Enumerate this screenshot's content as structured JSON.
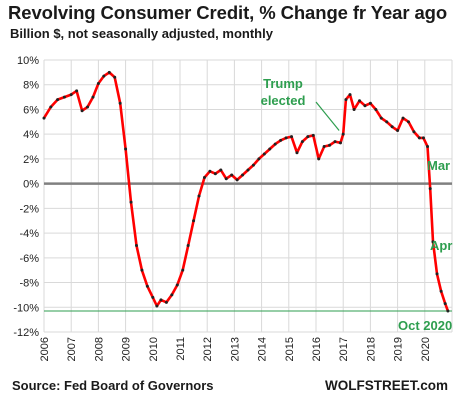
{
  "header": {
    "title": "Revolving Consumer Credit, % Change fr Year ago",
    "subtitle": "Billion $, not seasonally adjusted, monthly"
  },
  "footer": {
    "source": "Source: Fed Board of Governors",
    "brand": "WOLFSTREET.com"
  },
  "colors": {
    "line": "#ff0000",
    "marker": "#222222",
    "annotation": "#2e9e4f",
    "zero_line": "#808080",
    "grid": "#d9d9d9"
  },
  "chart_data": {
    "type": "line",
    "title": "Revolving Consumer Credit, % Change fr Year ago",
    "subtitle": "Billion $, not seasonally adjusted, monthly",
    "ylim": [
      -12,
      10
    ],
    "xlim": [
      2006,
      2021
    ],
    "grid": true,
    "y_ticks": [
      "10%",
      "8%",
      "6%",
      "4%",
      "2%",
      "0%",
      "-2%",
      "-4%",
      "-6%",
      "-8%",
      "-10%",
      "-12%"
    ],
    "x_ticks": [
      "2006",
      "2007",
      "2008",
      "2009",
      "2010",
      "2011",
      "2012",
      "2013",
      "2014",
      "2015",
      "2016",
      "2017",
      "2018",
      "2019",
      "2020"
    ],
    "series": [
      {
        "points": [
          [
            2006.0,
            5.3
          ],
          [
            2006.25,
            6.2
          ],
          [
            2006.5,
            6.8
          ],
          [
            2006.75,
            7.0
          ],
          [
            2007.0,
            7.2
          ],
          [
            2007.2,
            7.5
          ],
          [
            2007.4,
            5.9
          ],
          [
            2007.6,
            6.2
          ],
          [
            2007.8,
            7.0
          ],
          [
            2008.0,
            8.1
          ],
          [
            2008.2,
            8.7
          ],
          [
            2008.4,
            9.0
          ],
          [
            2008.6,
            8.6
          ],
          [
            2008.8,
            6.5
          ],
          [
            2009.0,
            2.8
          ],
          [
            2009.2,
            -1.5
          ],
          [
            2009.4,
            -5.0
          ],
          [
            2009.6,
            -7.0
          ],
          [
            2009.8,
            -8.3
          ],
          [
            2010.0,
            -9.2
          ],
          [
            2010.15,
            -9.9
          ],
          [
            2010.3,
            -9.4
          ],
          [
            2010.5,
            -9.6
          ],
          [
            2010.7,
            -9.0
          ],
          [
            2010.9,
            -8.2
          ],
          [
            2011.1,
            -7.0
          ],
          [
            2011.3,
            -5.0
          ],
          [
            2011.5,
            -3.0
          ],
          [
            2011.7,
            -1.0
          ],
          [
            2011.9,
            0.5
          ],
          [
            2012.1,
            1.0
          ],
          [
            2012.3,
            0.8
          ],
          [
            2012.5,
            1.1
          ],
          [
            2012.7,
            0.4
          ],
          [
            2012.9,
            0.7
          ],
          [
            2013.1,
            0.3
          ],
          [
            2013.3,
            0.7
          ],
          [
            2013.5,
            1.1
          ],
          [
            2013.7,
            1.5
          ],
          [
            2013.9,
            2.0
          ],
          [
            2014.1,
            2.4
          ],
          [
            2014.3,
            2.8
          ],
          [
            2014.5,
            3.2
          ],
          [
            2014.7,
            3.5
          ],
          [
            2014.9,
            3.7
          ],
          [
            2015.1,
            3.8
          ],
          [
            2015.3,
            2.5
          ],
          [
            2015.5,
            3.4
          ],
          [
            2015.7,
            3.8
          ],
          [
            2015.9,
            3.9
          ],
          [
            2016.1,
            2.0
          ],
          [
            2016.3,
            3.0
          ],
          [
            2016.5,
            3.1
          ],
          [
            2016.7,
            3.4
          ],
          [
            2016.9,
            3.3
          ],
          [
            2017.0,
            4.0
          ],
          [
            2017.1,
            6.8
          ],
          [
            2017.25,
            7.2
          ],
          [
            2017.4,
            6.0
          ],
          [
            2017.6,
            6.7
          ],
          [
            2017.8,
            6.3
          ],
          [
            2018.0,
            6.5
          ],
          [
            2018.2,
            6.0
          ],
          [
            2018.4,
            5.3
          ],
          [
            2018.6,
            5.0
          ],
          [
            2018.8,
            4.6
          ],
          [
            2019.0,
            4.3
          ],
          [
            2019.2,
            5.3
          ],
          [
            2019.4,
            5.0
          ],
          [
            2019.6,
            4.2
          ],
          [
            2019.8,
            3.7
          ],
          [
            2019.95,
            3.7
          ],
          [
            2020.1,
            3.0
          ],
          [
            2020.2,
            -0.4
          ],
          [
            2020.3,
            -4.7
          ],
          [
            2020.45,
            -7.3
          ],
          [
            2020.6,
            -8.7
          ],
          [
            2020.75,
            -9.7
          ],
          [
            2020.85,
            -10.3
          ]
        ]
      }
    ],
    "reference_line": {
      "y": -10.3
    },
    "annotations": [
      {
        "lines": [
          "Trump",
          "elected"
        ],
        "x": 2016.9,
        "y": 4.1
      },
      {
        "lines": [
          "Mar"
        ],
        "x": 2020.2,
        "y": 1.0
      },
      {
        "lines": [
          "Apr"
        ],
        "x": 2020.3,
        "y": -5.2
      },
      {
        "lines": [
          "Oct 2020"
        ],
        "x": 2020.85,
        "y": -11.0
      }
    ]
  }
}
